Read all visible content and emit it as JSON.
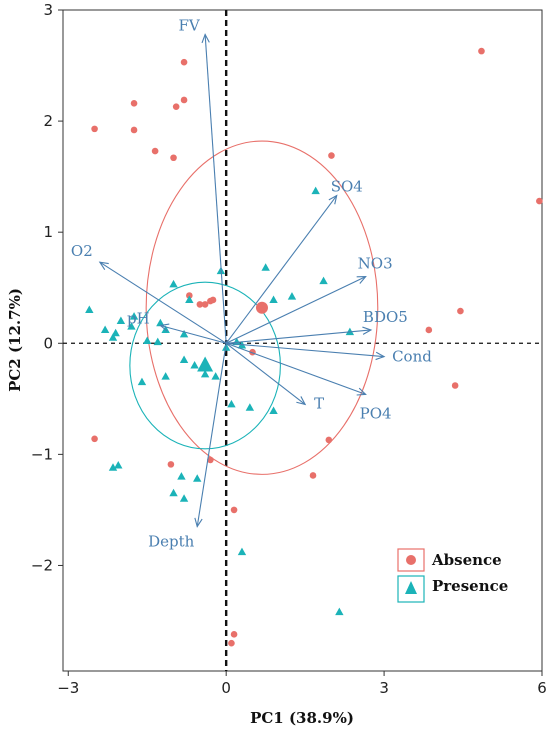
{
  "chart_data": {
    "type": "scatter",
    "xlabel": "PC1 (38.9%)",
    "ylabel": "PC2 (12.7%)",
    "xlim": [
      -3.1,
      6
    ],
    "ylim": [
      -2.95,
      3
    ],
    "xticks": [
      -3,
      0,
      3,
      6
    ],
    "xtick_labels": [
      "−3",
      "0",
      "3",
      "6"
    ],
    "yticks": [
      -2,
      -1,
      0,
      1,
      2,
      3
    ],
    "ytick_labels": [
      "−2",
      "−1",
      "0",
      "1",
      "2",
      "3"
    ],
    "grid": false,
    "reference_lines": {
      "x": 0,
      "y": 0
    },
    "legend": {
      "placement": "bottom-right",
      "entries": [
        {
          "label": "Absence",
          "marker": "circle",
          "color": "#e8706a"
        },
        {
          "label": "Presence",
          "marker": "triangle",
          "color": "#1bb3b8"
        }
      ]
    },
    "colors": {
      "absence": "#e8706a",
      "presence": "#1bb3b8",
      "arrows": "#4a7fb0"
    },
    "series": [
      {
        "name": "Absence",
        "marker": "circle",
        "color": "#e8706a",
        "centroid": [
          0.68,
          0.32
        ],
        "ellipse": {
          "cx": 0.68,
          "cy": 0.32,
          "rx": 2.2,
          "ry": 1.5
        },
        "points": [
          [
            -0.8,
            2.53
          ],
          [
            -2.5,
            1.93
          ],
          [
            -1.75,
            2.16
          ],
          [
            -1.75,
            1.92
          ],
          [
            -0.8,
            2.19
          ],
          [
            -0.95,
            2.13
          ],
          [
            -1.35,
            1.73
          ],
          [
            -1.0,
            1.67
          ],
          [
            2.0,
            1.69
          ],
          [
            4.85,
            2.63
          ],
          [
            5.95,
            1.28
          ],
          [
            -0.7,
            0.43
          ],
          [
            -0.3,
            0.38
          ],
          [
            -0.25,
            0.39
          ],
          [
            -0.4,
            0.35
          ],
          [
            -0.5,
            0.35
          ],
          [
            3.85,
            0.12
          ],
          [
            4.45,
            0.29
          ],
          [
            0.5,
            -0.08
          ],
          [
            4.35,
            -0.38
          ],
          [
            -2.5,
            -0.86
          ],
          [
            1.95,
            -0.87
          ],
          [
            -1.05,
            -1.09
          ],
          [
            -0.3,
            -1.05
          ],
          [
            1.65,
            -1.19
          ],
          [
            0.15,
            -1.5
          ],
          [
            0.15,
            -2.62
          ],
          [
            0.1,
            -2.7
          ]
        ]
      },
      {
        "name": "Presence",
        "marker": "triangle",
        "color": "#1bb3b8",
        "centroid": [
          -0.4,
          -0.2
        ],
        "ellipse": {
          "cx": -0.4,
          "cy": -0.2,
          "rx": 1.43,
          "ry": 0.75
        },
        "points": [
          [
            1.7,
            1.37
          ],
          [
            -0.1,
            0.65
          ],
          [
            0.75,
            0.68
          ],
          [
            -1.0,
            0.53
          ],
          [
            1.25,
            0.42
          ],
          [
            -0.7,
            0.39
          ],
          [
            0.9,
            0.39
          ],
          [
            1.85,
            0.56
          ],
          [
            2.35,
            0.1
          ],
          [
            -2.6,
            0.3
          ],
          [
            -2.3,
            0.12
          ],
          [
            -2.1,
            0.09
          ],
          [
            -2.15,
            0.05
          ],
          [
            -1.8,
            0.15
          ],
          [
            -1.75,
            0.24
          ],
          [
            -2.0,
            0.2
          ],
          [
            -1.5,
            0.02
          ],
          [
            -1.3,
            0.01
          ],
          [
            -1.25,
            0.18
          ],
          [
            -1.15,
            0.12
          ],
          [
            -0.8,
            0.08
          ],
          [
            0.0,
            -0.04
          ],
          [
            0.2,
            0.01
          ],
          [
            0.3,
            -0.02
          ],
          [
            -0.8,
            -0.15
          ],
          [
            -0.6,
            -0.2
          ],
          [
            -1.6,
            -0.35
          ],
          [
            -1.15,
            -0.3
          ],
          [
            -0.4,
            -0.28
          ],
          [
            -0.2,
            -0.3
          ],
          [
            0.1,
            -0.55
          ],
          [
            0.45,
            -0.58
          ],
          [
            0.9,
            -0.61
          ],
          [
            -2.15,
            -1.12
          ],
          [
            -2.05,
            -1.1
          ],
          [
            -0.85,
            -1.2
          ],
          [
            -0.55,
            -1.22
          ],
          [
            -1.0,
            -1.35
          ],
          [
            -0.8,
            -1.4
          ],
          [
            0.3,
            -1.88
          ],
          [
            2.15,
            -2.42
          ]
        ]
      }
    ],
    "loadings": [
      {
        "label": "FV",
        "x": -0.4,
        "y": 2.78
      },
      {
        "label": "SO4",
        "x": 2.1,
        "y": 1.33
      },
      {
        "label": "O2",
        "x": -2.4,
        "y": 0.73
      },
      {
        "label": "NO3",
        "x": 2.65,
        "y": 0.6
      },
      {
        "label": "pH",
        "x": -1.25,
        "y": 0.16
      },
      {
        "label": "BDO5",
        "x": 2.75,
        "y": 0.12
      },
      {
        "label": "Cond",
        "x": 3.0,
        "y": -0.12
      },
      {
        "label": "T",
        "x": 1.5,
        "y": -0.55
      },
      {
        "label": "PO4",
        "x": 2.65,
        "y": -0.46
      },
      {
        "label": "Depth",
        "x": -0.55,
        "y": -1.65
      }
    ]
  }
}
